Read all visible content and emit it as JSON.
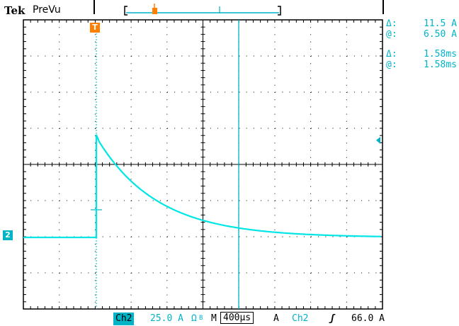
{
  "header": {
    "brand": "Tek",
    "mode": "PreVu"
  },
  "cursor_readout": {
    "delta_symbol": "Δ:",
    "at_symbol": "@:",
    "amplitude_delta": "11.5 A",
    "amplitude_at": "6.50 A",
    "time_delta": "1.58ms",
    "time_at": "1.58ms"
  },
  "channel_marker": "2",
  "trigger_marker": "T",
  "status_bar": {
    "channel": "Ch2",
    "scale": "25.0 A",
    "coupling_symbol": "Ω",
    "bw_symbol": "B",
    "timebase_prefix": "M",
    "timebase": "400µs",
    "trigger_mode": "A",
    "trigger_source": "Ch2",
    "trigger_slope": "ʃ",
    "trigger_level": "66.0 A"
  },
  "colors": {
    "trace": "#00e6e6",
    "accent": "#00b4c8",
    "trigger": "#ff7f00",
    "grid": "#000000"
  }
}
